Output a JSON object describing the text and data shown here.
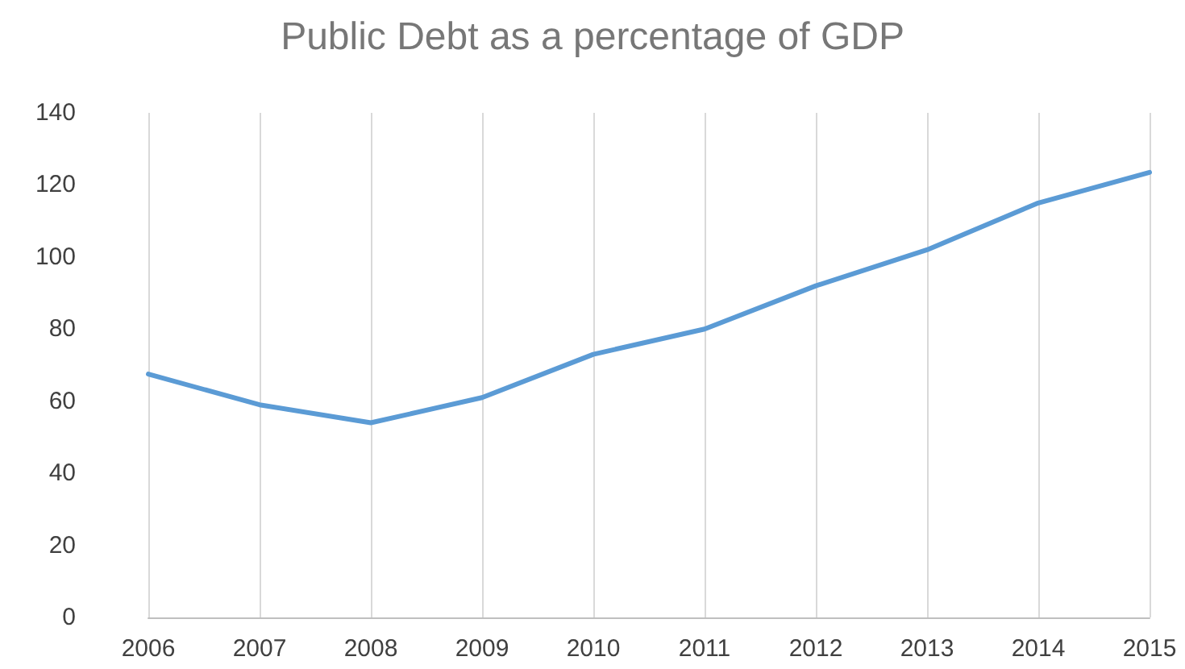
{
  "chart_data": {
    "type": "line",
    "title": "Public Debt as a percentage of GDP",
    "categories": [
      "2006",
      "2007",
      "2008",
      "2009",
      "2010",
      "2011",
      "2012",
      "2013",
      "2014",
      "2015"
    ],
    "series": [
      {
        "color": "#5b9bd5",
        "values": [
          67.5,
          59,
          54,
          61,
          73,
          80,
          92,
          102,
          115,
          123.5
        ]
      }
    ],
    "ylim": [
      0,
      140
    ],
    "yticks": [
      0,
      20,
      40,
      60,
      80,
      100,
      120,
      140
    ],
    "grid": "x",
    "marker": "none",
    "line_style": "solid"
  }
}
